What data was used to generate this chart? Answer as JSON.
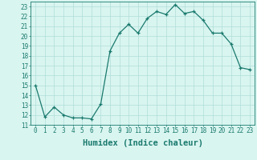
{
  "x": [
    0,
    1,
    2,
    3,
    4,
    5,
    6,
    7,
    8,
    9,
    10,
    11,
    12,
    13,
    14,
    15,
    16,
    17,
    18,
    19,
    20,
    21,
    22,
    23
  ],
  "y": [
    15,
    11.8,
    12.8,
    12.0,
    11.7,
    11.7,
    11.6,
    13.1,
    18.5,
    20.3,
    21.2,
    20.3,
    21.8,
    22.5,
    22.2,
    23.2,
    22.3,
    22.5,
    21.6,
    20.3,
    20.3,
    19.2,
    16.8,
    16.6
  ],
  "line_color": "#1a7a6e",
  "marker": "+",
  "markersize": 3.5,
  "linewidth": 0.9,
  "xlabel": "Humidex (Indice chaleur)",
  "bg_color": "#d9f5f0",
  "grid_color": "#b0ddd8",
  "xlim": [
    -0.5,
    23.5
  ],
  "ylim": [
    11,
    23.5
  ],
  "yticks": [
    11,
    12,
    13,
    14,
    15,
    16,
    17,
    18,
    19,
    20,
    21,
    22,
    23
  ],
  "xticks": [
    0,
    1,
    2,
    3,
    4,
    5,
    6,
    7,
    8,
    9,
    10,
    11,
    12,
    13,
    14,
    15,
    16,
    17,
    18,
    19,
    20,
    21,
    22,
    23
  ],
  "tick_fontsize": 5.5,
  "label_fontsize": 7.5
}
